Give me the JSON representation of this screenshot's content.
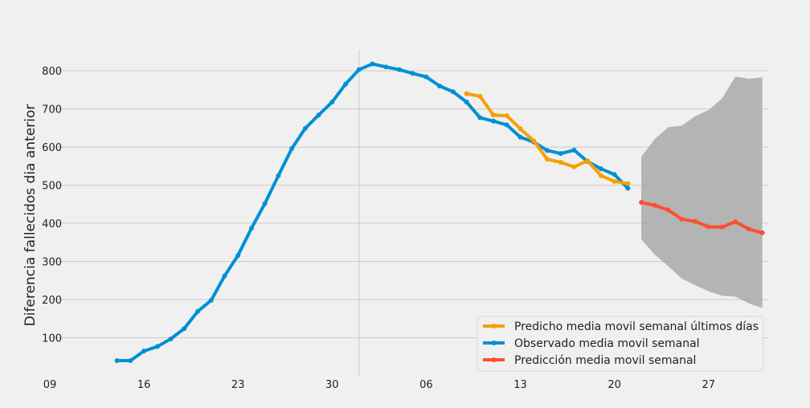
{
  "chart_data": {
    "type": "line",
    "title": "",
    "xlabel": "",
    "ylabel": "Diferencia fallecidos dia anterior",
    "x_unit": "day index (09 = first labelled day)",
    "xlim": [
      0,
      53.5
    ],
    "ylim": [
      0,
      855
    ],
    "grid": true,
    "legend_position": "bottom-right",
    "x_ticks": [
      {
        "x": 0,
        "label": "09"
      },
      {
        "x": 7,
        "label": "16"
      },
      {
        "x": 14,
        "label": "23"
      },
      {
        "x": 21,
        "label": "30"
      },
      {
        "x": 28,
        "label": "06"
      },
      {
        "x": 35,
        "label": "13"
      },
      {
        "x": 42,
        "label": "20"
      },
      {
        "x": 49,
        "label": "27"
      }
    ],
    "y_ticks": [
      100,
      200,
      300,
      400,
      500,
      600,
      700,
      800
    ],
    "vertical_marker_x": 23,
    "series": [
      {
        "name": "Predicho media movil semanal últimos días",
        "color": "#f5a000",
        "x": [
          31,
          32,
          33,
          34,
          35,
          36,
          37,
          38,
          39,
          40,
          41,
          42,
          43
        ],
        "values": [
          740,
          733,
          684,
          682,
          648,
          616,
          568,
          560,
          548,
          564,
          525,
          510,
          504
        ]
      },
      {
        "name": "Observado media movil semanal",
        "color": "#008fd5",
        "x": [
          5,
          6,
          7,
          8,
          9,
          10,
          11,
          12,
          13,
          14,
          15,
          16,
          17,
          18,
          19,
          20,
          21,
          22,
          23,
          24,
          25,
          26,
          27,
          28,
          29,
          30,
          31,
          32,
          33,
          34,
          35,
          36,
          37,
          38,
          39,
          40,
          41,
          42,
          43
        ],
        "values": [
          40,
          40,
          65,
          77,
          97,
          124,
          169,
          198,
          262,
          316,
          387,
          452,
          525,
          596,
          649,
          684,
          718,
          765,
          803,
          818,
          810,
          803,
          793,
          784,
          760,
          745,
          718,
          677,
          668,
          658,
          626,
          613,
          591,
          583,
          592,
          562,
          543,
          528,
          492
        ]
      },
      {
        "name": "Predicción media movil semanal",
        "color": "#fc4f30",
        "x": [
          44,
          45,
          46,
          47,
          48,
          49,
          50,
          51,
          52,
          53
        ],
        "values": [
          455,
          447,
          435,
          411,
          405,
          391,
          390,
          404,
          385,
          375
        ]
      }
    ],
    "confidence_band": {
      "color": "#a9a9a9",
      "x": [
        44,
        45,
        46,
        47,
        48,
        49,
        50,
        51,
        52,
        53
      ],
      "lower": [
        358,
        318,
        288,
        255,
        238,
        222,
        210,
        208,
        190,
        178
      ],
      "upper": [
        575,
        621,
        652,
        656,
        681,
        697,
        727,
        785,
        779,
        783
      ]
    }
  }
}
